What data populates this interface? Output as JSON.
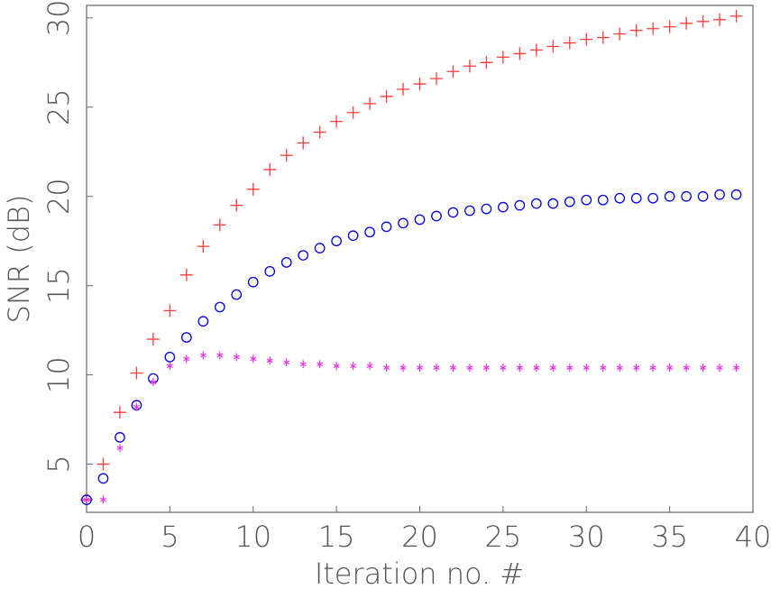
{
  "chart_data": {
    "type": "scatter",
    "xlabel": "Iteration no. #",
    "ylabel": "SNR (dB)",
    "xlim": [
      0,
      40
    ],
    "ylim": [
      2.3,
      30.7
    ],
    "xticks": [
      0,
      5,
      10,
      15,
      20,
      25,
      30,
      35,
      40
    ],
    "yticks": [
      5,
      10,
      15,
      20,
      25,
      30
    ],
    "grid": false,
    "legend": "none",
    "x": [
      0,
      1,
      2,
      3,
      4,
      5,
      6,
      7,
      8,
      9,
      10,
      11,
      12,
      13,
      14,
      15,
      16,
      17,
      18,
      19,
      20,
      21,
      22,
      23,
      24,
      25,
      26,
      27,
      28,
      29,
      30,
      31,
      32,
      33,
      34,
      35,
      36,
      37,
      38,
      39
    ],
    "series": [
      {
        "marker": "plus",
        "color": "#ff3b3b",
        "values": [
          3.0,
          5.0,
          7.9,
          10.1,
          12.0,
          13.6,
          15.6,
          17.2,
          18.4,
          19.5,
          20.4,
          21.5,
          22.3,
          23.0,
          23.6,
          24.2,
          24.7,
          25.2,
          25.6,
          26.0,
          26.3,
          26.6,
          27.0,
          27.3,
          27.5,
          27.8,
          28.0,
          28.2,
          28.4,
          28.6,
          28.8,
          28.9,
          29.1,
          29.3,
          29.4,
          29.5,
          29.7,
          29.8,
          29.9,
          30.1
        ]
      },
      {
        "marker": "circle",
        "color": "#0000e6",
        "values": [
          3.0,
          4.2,
          6.5,
          8.3,
          9.8,
          11.0,
          12.1,
          13.0,
          13.8,
          14.5,
          15.2,
          15.8,
          16.3,
          16.7,
          17.1,
          17.5,
          17.8,
          18.0,
          18.3,
          18.5,
          18.7,
          18.9,
          19.1,
          19.2,
          19.3,
          19.4,
          19.5,
          19.6,
          19.6,
          19.7,
          19.8,
          19.8,
          19.9,
          19.9,
          19.9,
          20.0,
          20.0,
          20.0,
          20.1,
          20.1
        ]
      },
      {
        "marker": "asterisk",
        "color": "#e833e8",
        "values": [
          3.0,
          3.0,
          5.9,
          8.2,
          9.6,
          10.5,
          10.9,
          11.1,
          11.1,
          11.0,
          10.9,
          10.8,
          10.7,
          10.6,
          10.6,
          10.5,
          10.5,
          10.5,
          10.4,
          10.4,
          10.4,
          10.4,
          10.4,
          10.4,
          10.4,
          10.4,
          10.4,
          10.4,
          10.4,
          10.4,
          10.4,
          10.4,
          10.4,
          10.4,
          10.4,
          10.4,
          10.4,
          10.4,
          10.4,
          10.4
        ]
      }
    ]
  }
}
